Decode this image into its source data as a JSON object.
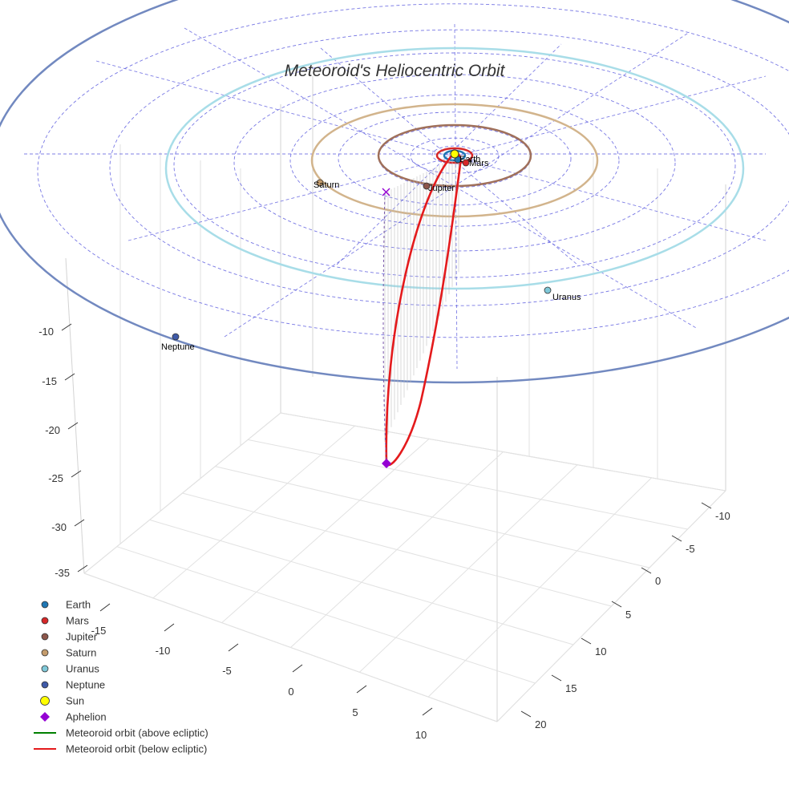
{
  "chart_data": {
    "type": "scatter",
    "title": "Meteoroid's Heliocentric Orbit",
    "projection": "3d",
    "axes": {
      "x_ticks": [
        -15,
        -10,
        -5,
        0,
        5,
        10
      ],
      "y_ticks": [
        -10,
        -5,
        0,
        5,
        10,
        15,
        20
      ],
      "z_ticks": [
        -10,
        -15,
        -20,
        -25,
        -30,
        -35
      ],
      "grid": true
    },
    "planets": [
      {
        "name": "Earth",
        "color": "#1f77b4",
        "orbit_color": "#1f77b4",
        "orbit_radius": 1.0,
        "labeled": true
      },
      {
        "name": "Mars",
        "color": "#d62728",
        "orbit_color": "#d62728",
        "orbit_radius": 1.52,
        "labeled": true
      },
      {
        "name": "Jupiter",
        "color": "#8c564b",
        "orbit_color": "#a0705a",
        "orbit_radius": 5.2,
        "labeled": true
      },
      {
        "name": "Saturn",
        "color": "#c49c6c",
        "orbit_color": "#d2b48c",
        "orbit_radius": 9.5,
        "labeled": true
      },
      {
        "name": "Uranus",
        "color": "#7fc8d8",
        "orbit_color": "#a8dde8",
        "orbit_radius": 19.2,
        "labeled": true
      },
      {
        "name": "Neptune",
        "color": "#3f5aa8",
        "orbit_color": "#7289c0",
        "orbit_radius": 30.1,
        "labeled": true
      }
    ],
    "sun": {
      "name": "Sun",
      "color": "#ffff00"
    },
    "aphelion": {
      "name": "Aphelion",
      "color": "#9400d3",
      "marker": "diamond",
      "approx_z": -24
    },
    "meteoroid_orbit": [
      {
        "name": "Meteoroid orbit (above ecliptic)",
        "color": "#008000"
      },
      {
        "name": "Meteoroid orbit (below ecliptic)",
        "color": "#e41a1c"
      }
    ],
    "legend": {
      "placement": "bottom-left",
      "entries": [
        {
          "label": "Earth",
          "color": "#1f77b4",
          "marker": "circle"
        },
        {
          "label": "Mars",
          "color": "#d62728",
          "marker": "circle"
        },
        {
          "label": "Jupiter",
          "color": "#8c564b",
          "marker": "circle"
        },
        {
          "label": "Saturn",
          "color": "#c49c6c",
          "marker": "circle"
        },
        {
          "label": "Uranus",
          "color": "#7fc8d8",
          "marker": "circle"
        },
        {
          "label": "Neptune",
          "color": "#3f5aa8",
          "marker": "circle"
        },
        {
          "label": "Sun",
          "color": "#ffff00",
          "marker": "circle-large"
        },
        {
          "label": "Aphelion",
          "color": "#9400d3",
          "marker": "diamond"
        },
        {
          "label": "Meteoroid orbit (above ecliptic)",
          "color": "#008000",
          "marker": "line"
        },
        {
          "label": "Meteoroid orbit (below ecliptic)",
          "color": "#e41a1c",
          "marker": "line"
        }
      ]
    }
  }
}
